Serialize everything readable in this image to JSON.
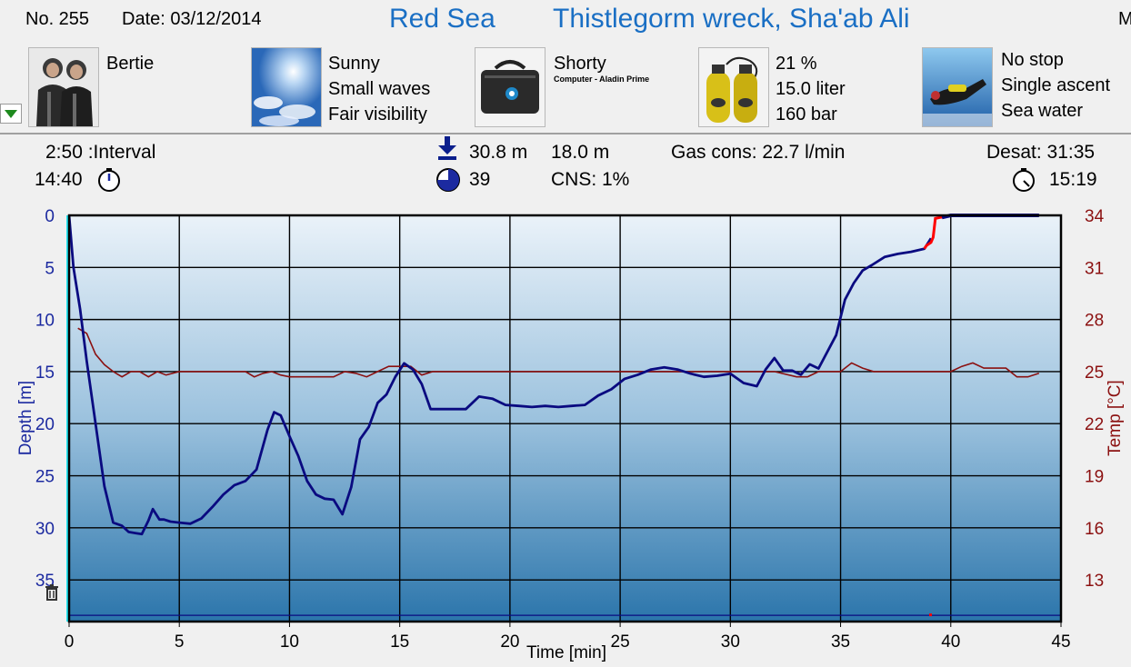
{
  "header": {
    "number": "No. 255",
    "date": "Date: 03/12/2014",
    "location": "Red Sea",
    "site": "Thistlegorm wreck, Sha'ab Ali",
    "cut_letter": "M"
  },
  "info_panels": [
    {
      "icon": "divers-photo-icon",
      "lines": [
        "Bertie"
      ]
    },
    {
      "icon": "sky-weather-icon",
      "lines": [
        "Sunny",
        "Small waves",
        "Fair visibility"
      ]
    },
    {
      "icon": "dive-bag-icon",
      "lines": [
        "Shorty",
        "Computer - Aladin Prime"
      ]
    },
    {
      "icon": "yellow-tanks-icon",
      "lines": [
        "21 %",
        "15.0 liter",
        "160 bar"
      ]
    },
    {
      "icon": "diver-underwater-icon",
      "lines": [
        "No stop",
        "Single ascent",
        "Sea water"
      ]
    }
  ],
  "stats": {
    "interval": "2:50 :Interval",
    "start_time": "14:40",
    "max_depth": "30.8 m",
    "avg_depth": "18.0 m",
    "gas_cons": "Gas cons: 22.7 l/min",
    "dive_time": "39",
    "cns": "CNS:  1%",
    "desat": "Desat: 31:35",
    "end_time": "15:19"
  },
  "colors": {
    "title": "#1a6fc4",
    "depth_line": "#0a0a80",
    "temp_line": "#8b1010",
    "depth_axis": "#1c2aa0",
    "temp_axis": "#8b1010",
    "ascent_warning": "#ff0000",
    "start_marker": "#22e4f0"
  },
  "chart_data": {
    "type": "line",
    "xlabel": "Time [min]",
    "ylabel": "Depth [m]",
    "y2label": "Temp [°C]",
    "xlim": [
      0,
      45
    ],
    "ylim": [
      0,
      39
    ],
    "y2lim": [
      10,
      34
    ],
    "x_ticks": [
      "0",
      "5",
      "10",
      "15",
      "20",
      "25",
      "30",
      "35",
      "40",
      "45"
    ],
    "y_ticks": [
      "0",
      "5",
      "10",
      "15",
      "20",
      "25",
      "30",
      "35"
    ],
    "y2_ticks": [
      "34",
      "31",
      "28",
      "25",
      "22",
      "19",
      "16",
      "13"
    ],
    "grid": true,
    "y_inverted": true,
    "series": [
      {
        "axis": "depth",
        "x": [
          0,
          0.2,
          0.5,
          0.8,
          1.2,
          1.6,
          2,
          2.4,
          2.7,
          3,
          3.3,
          3.6,
          3.8,
          4.1,
          4.3,
          4.6,
          5,
          5.5,
          6,
          6.5,
          7,
          7.5,
          8,
          8.5,
          9,
          9.3,
          9.6,
          10,
          10.4,
          10.8,
          11.2,
          11.6,
          12,
          12.4,
          12.8,
          13.2,
          13.6,
          14,
          14.4,
          14.8,
          15.2,
          15.6,
          16,
          16.4,
          16.8,
          17.4,
          18,
          18.6,
          19.2,
          19.8,
          20.4,
          21,
          21.6,
          22.2,
          22.8,
          23.4,
          24,
          24.6,
          25.2,
          25.8,
          26.4,
          27,
          27.6,
          28.2,
          28.8,
          29.4,
          30,
          30.6,
          31.2,
          31.6,
          32,
          32.4,
          32.8,
          33.2,
          33.6,
          34,
          34.4,
          34.8,
          35.2,
          35.6,
          36,
          36.4,
          37,
          37.6,
          38.2,
          38.8,
          39.1
        ],
        "y": [
          0,
          5,
          9,
          14,
          20,
          26,
          29.5,
          29.8,
          30.4,
          30.5,
          30.6,
          29.3,
          28.2,
          29.2,
          29.2,
          29.4,
          29.5,
          29.6,
          29.1,
          28,
          26.8,
          25.9,
          25.5,
          24.4,
          20.6,
          18.9,
          19.2,
          21.2,
          23.1,
          25.5,
          26.8,
          27.2,
          27.3,
          28.7,
          26.1,
          21.5,
          20.3,
          18,
          17.2,
          15.5,
          14.2,
          14.8,
          16.2,
          18.6,
          18.6,
          18.6,
          18.6,
          17.4,
          17.6,
          18.2,
          18.3,
          18.4,
          18.3,
          18.4,
          18.3,
          18.2,
          17.3,
          16.7,
          15.7,
          15.3,
          14.8,
          14.6,
          14.8,
          15.2,
          15.5,
          15.4,
          15.2,
          16.1,
          16.4,
          14.8,
          13.7,
          14.9,
          14.9,
          15.3,
          14.3,
          14.7,
          13.1,
          11.5,
          8.1,
          6.5,
          5.3,
          4.8,
          4.0,
          3.7,
          3.5,
          3.2,
          2.2
        ]
      },
      {
        "axis": "temp",
        "x": [
          0.4,
          0.8,
          1.2,
          1.6,
          2,
          2.4,
          2.8,
          3.2,
          3.6,
          4,
          4.4,
          5,
          5.5,
          6,
          6.5,
          7,
          7.5,
          8,
          8.4,
          8.8,
          9.2,
          9.6,
          10,
          10.5,
          11,
          11.5,
          12,
          12.5,
          13,
          13.5,
          14,
          14.5,
          15,
          15.5,
          16,
          16.5,
          17,
          18,
          19,
          20,
          21,
          22,
          23,
          24,
          25,
          26,
          27,
          28,
          29,
          30,
          31,
          32,
          33,
          33.5,
          34,
          34.5,
          35,
          35.5,
          36,
          36.5,
          37,
          38,
          39,
          40,
          40.5,
          41,
          41.5,
          42,
          42.5,
          43,
          43.5,
          44
        ],
        "y": [
          27.5,
          27.2,
          26,
          25.4,
          25,
          24.7,
          25,
          25,
          24.7,
          25,
          24.8,
          25,
          25,
          25,
          25,
          25,
          25,
          25,
          24.7,
          24.9,
          25,
          24.8,
          24.7,
          24.7,
          24.7,
          24.7,
          24.7,
          25,
          24.9,
          24.7,
          25,
          25.3,
          25.3,
          25.3,
          24.8,
          25,
          25,
          25,
          25,
          25,
          25,
          25,
          25,
          25,
          25,
          25,
          25,
          25,
          25,
          25,
          25,
          25,
          24.7,
          24.7,
          25,
          25,
          25,
          25.5,
          25.2,
          25,
          25,
          25,
          25,
          25,
          25.3,
          25.5,
          25.2,
          25.2,
          25.2,
          24.7,
          24.7,
          24.9
        ]
      },
      {
        "axis": "depth",
        "x": [
          38.8,
          38.9,
          39.1,
          39.2,
          39.3,
          39.5,
          39.8,
          40
        ],
        "y": [
          3.2,
          2.9,
          2.6,
          2.1,
          0.3,
          0.2,
          0.1,
          0
        ]
      },
      {
        "axis": "depth",
        "x": [
          39.6,
          40,
          40.5,
          41,
          42,
          43,
          44
        ],
        "y": [
          0.2,
          0,
          0,
          0,
          0,
          0,
          0
        ]
      }
    ],
    "deco_line_depth": 38.4
  }
}
